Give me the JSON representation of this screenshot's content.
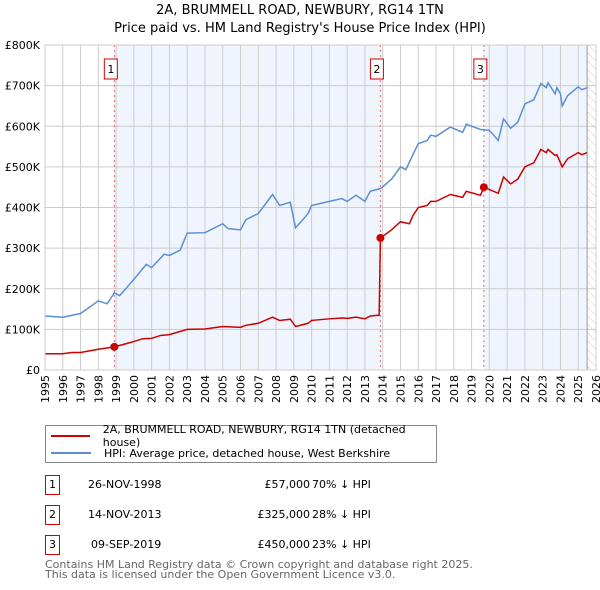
{
  "chart_data": {
    "type": "line",
    "title": "2A, BRUMMELL ROAD, NEWBURY, RG14 1TN",
    "subtitle": "Price paid vs. HM Land Registry's House Price Index (HPI)",
    "xlim": [
      1995,
      2026
    ],
    "ylim": [
      0,
      800000
    ],
    "x_ticks": [
      "1995",
      "1996",
      "1997",
      "1998",
      "1999",
      "2000",
      "2001",
      "2002",
      "2003",
      "2004",
      "2005",
      "2006",
      "2007",
      "2008",
      "2009",
      "2010",
      "2011",
      "2012",
      "2013",
      "2014",
      "2015",
      "2016",
      "2017",
      "2018",
      "2019",
      "2020",
      "2021",
      "2022",
      "2023",
      "2024",
      "2025",
      "2026"
    ],
    "y_ticks": [
      {
        "v": 0,
        "label": "£0"
      },
      {
        "v": 100000,
        "label": "£100K"
      },
      {
        "v": 200000,
        "label": "£200K"
      },
      {
        "v": 300000,
        "label": "£300K"
      },
      {
        "v": 400000,
        "label": "£400K"
      },
      {
        "v": 500000,
        "label": "£500K"
      },
      {
        "v": 600000,
        "label": "£600K"
      },
      {
        "v": 700000,
        "label": "£700K"
      },
      {
        "v": 800000,
        "label": "£800K"
      }
    ],
    "grid": true,
    "series": [
      {
        "name": "2A, BRUMMELL ROAD, NEWBURY, RG14 1TN (detached house)",
        "color": "#cc0000",
        "points": [
          [
            1995,
            40
          ],
          [
            1996,
            40
          ],
          [
            1996.5,
            43
          ],
          [
            1997,
            43
          ],
          [
            1998,
            51
          ],
          [
            1998.9,
            57
          ],
          [
            1999.5,
            64
          ],
          [
            2000,
            70
          ],
          [
            2000.5,
            77
          ],
          [
            2001,
            78
          ],
          [
            2001.5,
            85
          ],
          [
            2002,
            87
          ],
          [
            2003,
            100
          ],
          [
            2004,
            101
          ],
          [
            2005,
            107
          ],
          [
            2006,
            105
          ],
          [
            2006.3,
            110
          ],
          [
            2007,
            115
          ],
          [
            2007.8,
            130
          ],
          [
            2008.2,
            122
          ],
          [
            2008.8,
            125
          ],
          [
            2009.1,
            107
          ],
          [
            2009.8,
            115
          ],
          [
            2010,
            122
          ],
          [
            2011,
            126
          ],
          [
            2011.7,
            128
          ],
          [
            2012,
            127
          ],
          [
            2012.5,
            130
          ],
          [
            2013,
            126
          ],
          [
            2013.3,
            133
          ],
          [
            2013.8,
            135
          ],
          [
            2013.87,
            325
          ],
          [
            2014.5,
            345
          ],
          [
            2015,
            365
          ],
          [
            2015.5,
            360
          ],
          [
            2015.7,
            380
          ],
          [
            2016,
            400
          ],
          [
            2016.5,
            405
          ],
          [
            2016.7,
            415
          ],
          [
            2017,
            415
          ],
          [
            2017.8,
            432
          ],
          [
            2018.5,
            425
          ],
          [
            2018.7,
            440
          ],
          [
            2019.5,
            430
          ],
          [
            2019.69,
            450
          ],
          [
            2020.5,
            435
          ],
          [
            2020.8,
            475
          ],
          [
            2021.2,
            458
          ],
          [
            2021.6,
            470
          ],
          [
            2022,
            500
          ],
          [
            2022.5,
            510
          ],
          [
            2022.9,
            543
          ],
          [
            2023.2,
            535
          ],
          [
            2023.3,
            543
          ],
          [
            2023.7,
            528
          ],
          [
            2023.8,
            530
          ],
          [
            2024.1,
            500
          ],
          [
            2024.4,
            520
          ],
          [
            2025,
            535
          ],
          [
            2025.2,
            530
          ],
          [
            2025.5,
            535
          ]
        ]
      },
      {
        "name": "HPI: Average price, detached house, West Berkshire",
        "color": "#5b8fd4",
        "points": [
          [
            1995,
            133
          ],
          [
            1996,
            130
          ],
          [
            1997,
            139
          ],
          [
            1998,
            170
          ],
          [
            1998.5,
            163
          ],
          [
            1998.9,
            190
          ],
          [
            1999.2,
            183
          ],
          [
            2000,
            223
          ],
          [
            2000.7,
            260
          ],
          [
            2001,
            252
          ],
          [
            2001.7,
            285
          ],
          [
            2002,
            282
          ],
          [
            2002.6,
            295
          ],
          [
            2003,
            337
          ],
          [
            2004,
            338
          ],
          [
            2005,
            360
          ],
          [
            2005.3,
            348
          ],
          [
            2006,
            345
          ],
          [
            2006.3,
            370
          ],
          [
            2007,
            385
          ],
          [
            2007.8,
            432
          ],
          [
            2008.2,
            405
          ],
          [
            2008.8,
            413
          ],
          [
            2009,
            370
          ],
          [
            2009.1,
            350
          ],
          [
            2009.8,
            385
          ],
          [
            2010,
            405
          ],
          [
            2011,
            415
          ],
          [
            2011.7,
            422
          ],
          [
            2012,
            415
          ],
          [
            2012.5,
            430
          ],
          [
            2013,
            415
          ],
          [
            2013.3,
            440
          ],
          [
            2013.9,
            447
          ],
          [
            2014.5,
            470
          ],
          [
            2015,
            500
          ],
          [
            2015.3,
            493
          ],
          [
            2015.7,
            530
          ],
          [
            2016,
            557
          ],
          [
            2016.5,
            565
          ],
          [
            2016.7,
            578
          ],
          [
            2017,
            575
          ],
          [
            2017.8,
            598
          ],
          [
            2018.5,
            585
          ],
          [
            2018.7,
            605
          ],
          [
            2019.5,
            592
          ],
          [
            2020,
            590
          ],
          [
            2020.5,
            565
          ],
          [
            2020.8,
            618
          ],
          [
            2021.2,
            595
          ],
          [
            2021.6,
            610
          ],
          [
            2022,
            655
          ],
          [
            2022.5,
            665
          ],
          [
            2022.9,
            705
          ],
          [
            2023.2,
            695
          ],
          [
            2023.3,
            707
          ],
          [
            2023.7,
            680
          ],
          [
            2023.8,
            695
          ],
          [
            2024,
            680
          ],
          [
            2024.1,
            650
          ],
          [
            2024.4,
            675
          ],
          [
            2025,
            697
          ],
          [
            2025.2,
            690
          ],
          [
            2025.5,
            695
          ]
        ]
      }
    ],
    "sales": [
      {
        "n": "1",
        "x": 1998.9,
        "y": 57
      },
      {
        "n": "2",
        "x": 2013.87,
        "y": 325
      },
      {
        "n": "3",
        "x": 2019.69,
        "y": 450
      }
    ],
    "data_end": 2025.5,
    "y_unit": "thousands GBP"
  },
  "legend": {
    "red": "2A, BRUMMELL ROAD, NEWBURY, RG14 1TN (detached house)",
    "blue": "HPI: Average price, detached house, West Berkshire"
  },
  "table": [
    {
      "n": "1",
      "date": "26-NOV-1998",
      "price": "£57,000",
      "hpi": "70% ↓ HPI"
    },
    {
      "n": "2",
      "date": "14-NOV-2013",
      "price": "£325,000",
      "hpi": "28% ↓ HPI"
    },
    {
      "n": "3",
      "date": "09-SEP-2019",
      "price": "£450,000",
      "hpi": "23% ↓ HPI"
    }
  ],
  "footer": {
    "line1": "Contains HM Land Registry data © Crown copyright and database right 2025.",
    "line2": "This data is licensed under the Open Government Licence v3.0."
  }
}
